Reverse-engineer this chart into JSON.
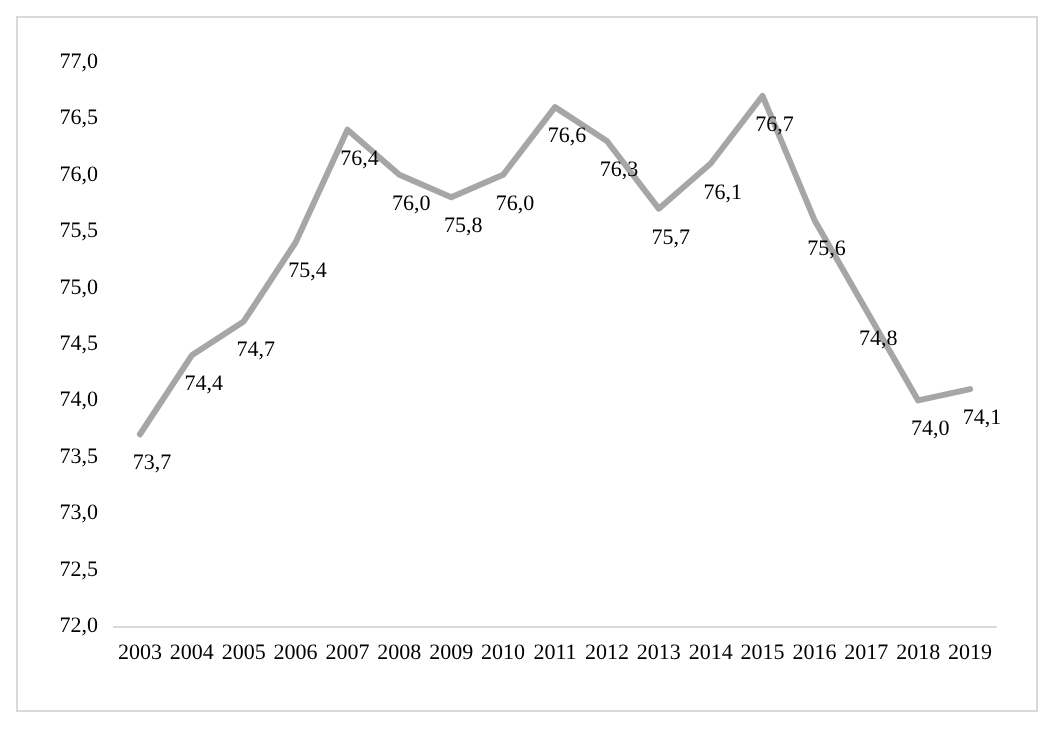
{
  "chart_data": {
    "type": "line",
    "categories": [
      "2003",
      "2004",
      "2005",
      "2006",
      "2007",
      "2008",
      "2009",
      "2010",
      "2011",
      "2012",
      "2013",
      "2014",
      "2015",
      "2016",
      "2017",
      "2018",
      "2019"
    ],
    "values": [
      73.7,
      74.4,
      74.7,
      75.4,
      76.4,
      76.0,
      75.8,
      76.0,
      76.6,
      76.3,
      75.7,
      76.1,
      76.7,
      75.6,
      74.8,
      74.0,
      74.1
    ],
    "value_labels": [
      "73,7",
      "74,4",
      "74,7",
      "75,4",
      "76,4",
      "76,0",
      "75,8",
      "76,0",
      "76,6",
      "76,3",
      "75,7",
      "76,1",
      "76,7",
      "75,6",
      "74,8",
      "74,0",
      "74,1"
    ],
    "color": "#a6a6a6",
    "ylim": [
      72,
      77
    ],
    "yticks": [
      {
        "value": 72,
        "label": "72,0"
      },
      {
        "value": 72.5,
        "label": "72,5"
      },
      {
        "value": 73,
        "label": "73,0"
      },
      {
        "value": 73.5,
        "label": "73,5"
      },
      {
        "value": 74,
        "label": "74,0"
      },
      {
        "value": 74.5,
        "label": "74,5"
      },
      {
        "value": 75,
        "label": "75,0"
      },
      {
        "value": 75.5,
        "label": "75,5"
      },
      {
        "value": 76,
        "label": "76,0"
      },
      {
        "value": 76.5,
        "label": "76,5"
      },
      {
        "value": 77,
        "label": "77,0"
      }
    ],
    "grid": false,
    "marker": "none",
    "line_style": "solid"
  }
}
